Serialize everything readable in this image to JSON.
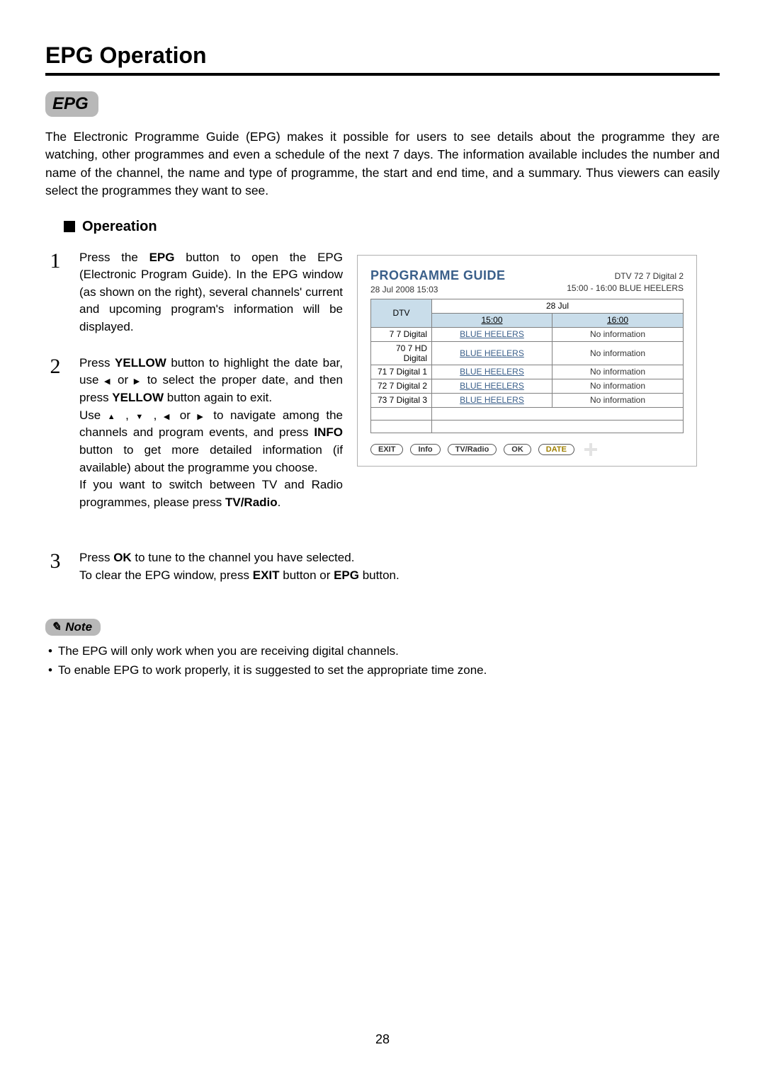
{
  "page": {
    "title": "EPG Operation",
    "section_badge": "EPG",
    "intro": "The Electronic Programme Guide (EPG) makes it possible for users to see details about the programme they are watching, other programmes and even a schedule of the next 7 days. The information available includes the number and name of the channel, the name and type of programme, the start and end time, and a summary. Thus viewers can easily select the programmes they want to see.",
    "subheading": "Opereation",
    "page_number": "28"
  },
  "steps": {
    "s1": {
      "num": "1",
      "html": "Press the <b>EPG</b> button to open the EPG (Electronic Program Guide). In the EPG window (as shown on the right), several channels' current and upcoming program's information will be displayed."
    },
    "s2": {
      "num": "2",
      "html": "Press <b>YELLOW</b> button to highlight the date bar, use <span class='tri'>◀</span> or <span class='tri'>▶</span> to select the proper date, and then press <b>YELLOW</b> button again to exit.<br>Use <span class='tri'>▲</span> , <span class='tri'>▼</span> , <span class='tri'>◀</span> or <span class='tri'>▶</span> to navigate among the channels and program events, and press <b>INFO</b> button to get more detailed information (if available) about the programme you choose.<br>If you want to switch between TV and Radio programmes, please press <b>TV/Radio</b>."
    },
    "s3": {
      "num": "3",
      "html": "Press <b>OK</b> to tune to the channel you have selected.<br>To clear the EPG window, press <b>EXIT</b> button or <b>EPG</b> button."
    }
  },
  "epg": {
    "title": "PROGRAMME GUIDE",
    "datetime": "28 Jul 2008  15:03",
    "now_source": "DTV    72  7 Digital 2",
    "now_prog": "15:00 - 16:00  BLUE HEELERS",
    "col_label": "DTV",
    "date_span": "28  Jul",
    "time1": "15:00",
    "time2": "16:00",
    "rows": [
      {
        "ch": "7  7 Digital",
        "p1": "BLUE HEELERS",
        "p2": "No information"
      },
      {
        "ch": "70  7 HD Digital",
        "p1": "BLUE HEELERS",
        "p2": "No information"
      },
      {
        "ch": "71  7 Digital 1",
        "p1": "BLUE HEELERS",
        "p2": "No information"
      },
      {
        "ch": "72  7 Digital 2",
        "p1": "BLUE HEELERS",
        "p2": "No information"
      },
      {
        "ch": "73  7 Digital 3",
        "p1": "BLUE HEELERS",
        "p2": "No information"
      }
    ],
    "buttons": {
      "exit": "EXIT",
      "info": "Info",
      "tvradio": "TV/Radio",
      "ok": "OK",
      "date": "DATE"
    }
  },
  "note": {
    "label": "Note",
    "items": [
      "The EPG will only work when you are receiving digital channels.",
      "To enable EPG to work properly, it is suggested to set the appropriate time zone."
    ]
  }
}
